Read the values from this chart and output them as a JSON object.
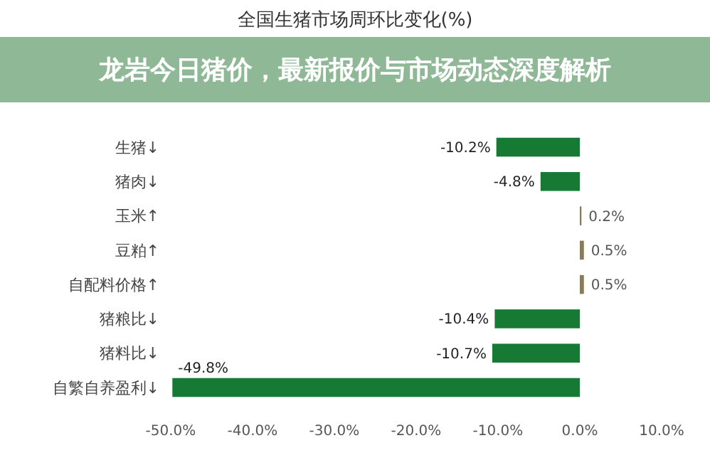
{
  "chart_data": {
    "type": "bar",
    "orientation": "horizontal",
    "title": "全国生猪市场周环比变化(%)",
    "annotations": [
      "龙岩今日猪价，最新报价与市场动态深度解析"
    ],
    "categories": [
      "生猪↓",
      "猪肉↓",
      "玉米↑",
      "豆粕↑",
      "自配料价格↑",
      "猪粮比↓",
      "猪料比↓",
      "自繁自养盈利↓"
    ],
    "values": [
      -10.2,
      -4.8,
      0.2,
      0.5,
      0.5,
      -10.4,
      -10.7,
      -49.8
    ],
    "colors": [
      "#167a35",
      "#167a35",
      "#8a7b55",
      "#8a7b55",
      "#8a7b55",
      "#167a35",
      "#167a35",
      "#167a35"
    ],
    "value_labels": [
      "-10.2%",
      "-4.8%",
      "0.2%",
      "0.5%",
      "0.5%",
      "-10.4%",
      "-10.7%",
      "-49.8%"
    ],
    "xlim": [
      -50,
      10
    ],
    "xticks": [
      {
        "value": -50,
        "label": "-50.0%"
      },
      {
        "value": -40,
        "label": "-40.0%"
      },
      {
        "value": -30,
        "label": "-30.0%"
      },
      {
        "value": -20,
        "label": "-20.0%"
      },
      {
        "value": -10,
        "label": "-10.0%"
      },
      {
        "value": 0,
        "label": "0.0%"
      },
      {
        "value": 10,
        "label": "10.0%"
      }
    ],
    "grid": false
  }
}
